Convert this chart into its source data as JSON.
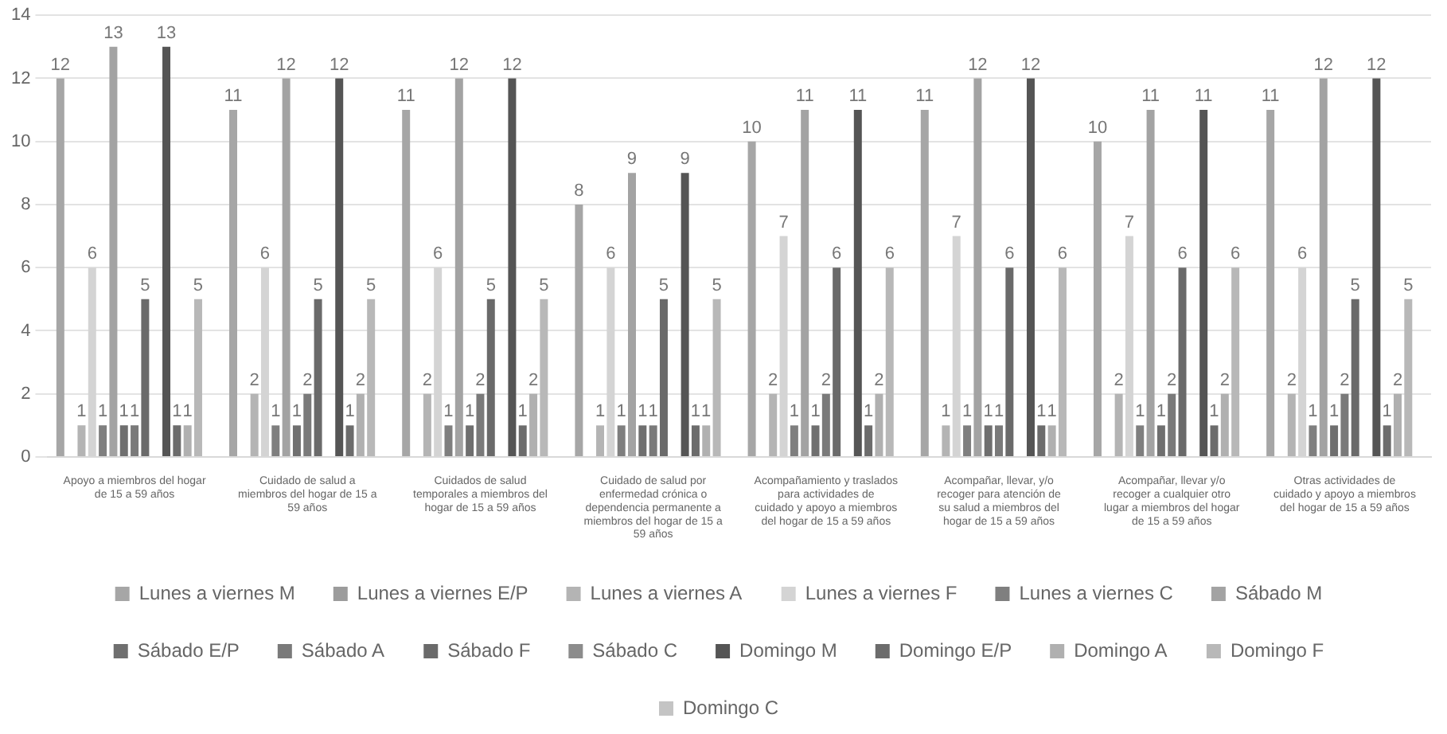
{
  "chart_data": {
    "type": "bar",
    "categories": [
      "Apoyo a miembros del hogar de 15 a 59 años",
      "Cuidado de salud a miembros del hogar de 15 a 59 años",
      "Cuidados de salud temporales a miembros del hogar de 15 a 59 años",
      "Cuidado de salud por enfermedad crónica o dependencia permanente a miembros del hogar de 15 a 59 años",
      "Acompañamiento y traslados para actividades de cuidado y apoyo a miembros del hogar de 15 a 59 años",
      "Acompañar, llevar, y/o recoger para atención de su salud a miembros del hogar de 15 a 59 años",
      "Acompañar, llevar y/o recoger a cualquier otro lugar a miembros del hogar de 15 a 59 años",
      "Otras actividades de cuidado y apoyo a miembros del hogar de 15 a 59 años"
    ],
    "series": [
      {
        "name": "Lunes a viernes M",
        "color": "#a6a6a6",
        "values": [
          12,
          11,
          11,
          8,
          10,
          11,
          10,
          11
        ]
      },
      {
        "name": "Lunes a viernes E/P",
        "color": "#9c9c9c",
        "values": [
          null,
          null,
          null,
          null,
          null,
          null,
          null,
          null
        ]
      },
      {
        "name": "Lunes a viernes A",
        "color": "#b4b4b4",
        "values": [
          1,
          2,
          2,
          1,
          2,
          1,
          2,
          2
        ]
      },
      {
        "name": "Lunes a viernes F",
        "color": "#d4d4d4",
        "values": [
          6,
          6,
          6,
          6,
          7,
          7,
          7,
          6
        ]
      },
      {
        "name": "Lunes a viernes C",
        "color": "#7f7f7f",
        "values": [
          1,
          1,
          1,
          1,
          1,
          1,
          1,
          1
        ]
      },
      {
        "name": "Sábado M",
        "color": "#a3a3a3",
        "values": [
          13,
          12,
          12,
          9,
          11,
          12,
          11,
          12
        ]
      },
      {
        "name": "Sábado E/P",
        "color": "#6f6f6f",
        "values": [
          1,
          1,
          1,
          1,
          1,
          1,
          1,
          1
        ]
      },
      {
        "name": "Sábado A",
        "color": "#7a7a7a",
        "values": [
          1,
          2,
          2,
          1,
          2,
          1,
          2,
          2
        ]
      },
      {
        "name": "Sábado F",
        "color": "#6a6a6a",
        "values": [
          5,
          5,
          5,
          5,
          6,
          6,
          6,
          5
        ]
      },
      {
        "name": "Sábado C",
        "color": "#8c8c8c",
        "values": [
          null,
          null,
          null,
          null,
          null,
          null,
          null,
          null
        ]
      },
      {
        "name": "Domingo M",
        "color": "#555555",
        "values": [
          13,
          12,
          12,
          9,
          11,
          12,
          11,
          12
        ]
      },
      {
        "name": "Domingo E/P",
        "color": "#6c6c6c",
        "values": [
          1,
          1,
          1,
          1,
          1,
          1,
          1,
          1
        ]
      },
      {
        "name": "Domingo A",
        "color": "#b0b0b0",
        "values": [
          1,
          2,
          2,
          1,
          2,
          1,
          2,
          2
        ]
      },
      {
        "name": "Domingo F",
        "color": "#b8b8b8",
        "values": [
          5,
          5,
          5,
          5,
          6,
          6,
          6,
          5
        ]
      },
      {
        "name": "Domingo C",
        "color": "#c4c4c4",
        "values": [
          null,
          null,
          null,
          null,
          null,
          null,
          null,
          null
        ]
      }
    ],
    "ylim": [
      0,
      14
    ],
    "yticks": [
      0,
      2,
      4,
      6,
      8,
      10,
      12,
      14
    ],
    "grid": "y",
    "legend": "bottom",
    "data_labels": true
  }
}
